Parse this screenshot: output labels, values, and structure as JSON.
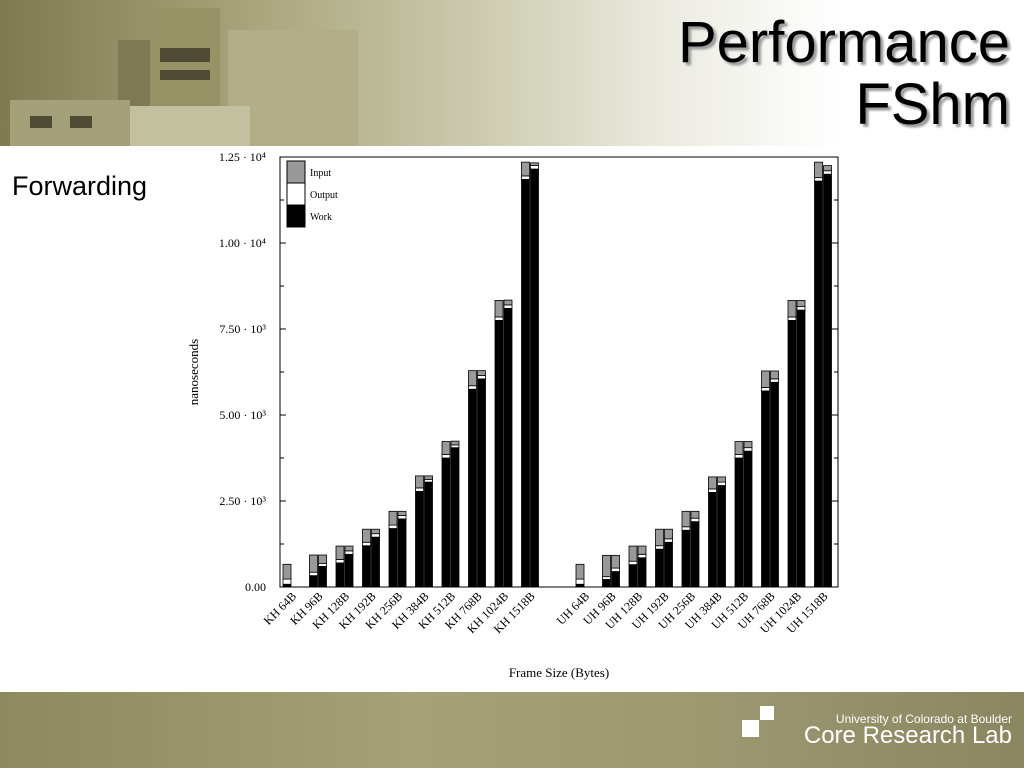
{
  "slide": {
    "title_line1": "Performance",
    "title_line2": "FShm",
    "subheading": "Forwarding"
  },
  "footer": {
    "university": "University of Colorado at Boulder",
    "lab": "Core Research Lab"
  },
  "colors": {
    "input": "#999999",
    "output": "#ffffff",
    "work": "#000000"
  },
  "chart_data": {
    "type": "bar",
    "stacked": true,
    "xlabel": "Frame Size (Bytes)",
    "ylabel": "nanoseconds",
    "ylim": [
      0,
      12500
    ],
    "yticks": [
      {
        "value": 0,
        "label": "0.00"
      },
      {
        "value": 2500,
        "label": "2.50 · 10³"
      },
      {
        "value": 5000,
        "label": "5.00 · 10³"
      },
      {
        "value": 7500,
        "label": "7.50 · 10³"
      },
      {
        "value": 10000,
        "label": "1.00 · 10⁴"
      },
      {
        "value": 12500,
        "label": "1.25 · 10⁴"
      }
    ],
    "legend_position": "top-left",
    "legend": [
      "Input",
      "Output",
      "Work"
    ],
    "groups": [
      {
        "categories": [
          "KH 64B",
          "KH 96B",
          "KH 128B",
          "KH 192B",
          "KH 256B",
          "KH 384B",
          "KH 512B",
          "KH 768B",
          "KH 1024B",
          "KH 1518B"
        ],
        "pairs": [
          [
            {
              "work": 80,
              "output": 150,
              "input": 430
            },
            {
              "work": 0,
              "output": 0,
              "input": 0
            }
          ],
          [
            {
              "work": 330,
              "output": 100,
              "input": 500
            },
            {
              "work": 600,
              "output": 80,
              "input": 250
            }
          ],
          [
            {
              "work": 700,
              "output": 100,
              "input": 390
            },
            {
              "work": 950,
              "output": 100,
              "input": 140
            }
          ],
          [
            {
              "work": 1200,
              "output": 100,
              "input": 380
            },
            {
              "work": 1450,
              "output": 100,
              "input": 130
            }
          ],
          [
            {
              "work": 1700,
              "output": 100,
              "input": 400
            },
            {
              "work": 1980,
              "output": 100,
              "input": 120
            }
          ],
          [
            {
              "work": 2780,
              "output": 100,
              "input": 350
            },
            {
              "work": 3050,
              "output": 80,
              "input": 100
            }
          ],
          [
            {
              "work": 3750,
              "output": 100,
              "input": 380
            },
            {
              "work": 4050,
              "output": 80,
              "input": 110
            }
          ],
          [
            {
              "work": 5750,
              "output": 100,
              "input": 440
            },
            {
              "work": 6050,
              "output": 100,
              "input": 140
            }
          ],
          [
            {
              "work": 7750,
              "output": 100,
              "input": 480
            },
            {
              "work": 8100,
              "output": 100,
              "input": 140
            }
          ],
          [
            {
              "work": 11850,
              "output": 100,
              "input": 400
            },
            {
              "work": 12150,
              "output": 100,
              "input": 80
            }
          ]
        ]
      },
      {
        "categories": [
          "UH 64B",
          "UH 96B",
          "UH 128B",
          "UH 192B",
          "UH 256B",
          "UH 384B",
          "UH 512B",
          "UH 768B",
          "UH 1024B",
          "UH 1518B"
        ],
        "pairs": [
          [
            {
              "work": 80,
              "output": 150,
              "input": 430
            },
            {
              "work": 0,
              "output": 0,
              "input": 0
            }
          ],
          [
            {
              "work": 220,
              "output": 80,
              "input": 620
            },
            {
              "work": 450,
              "output": 100,
              "input": 370
            }
          ],
          [
            {
              "work": 650,
              "output": 100,
              "input": 440
            },
            {
              "work": 850,
              "output": 100,
              "input": 240
            }
          ],
          [
            {
              "work": 1100,
              "output": 100,
              "input": 480
            },
            {
              "work": 1300,
              "output": 100,
              "input": 280
            }
          ],
          [
            {
              "work": 1650,
              "output": 100,
              "input": 450
            },
            {
              "work": 1900,
              "output": 100,
              "input": 200
            }
          ],
          [
            {
              "work": 2750,
              "output": 100,
              "input": 350
            },
            {
              "work": 2950,
              "output": 100,
              "input": 150
            }
          ],
          [
            {
              "work": 3750,
              "output": 100,
              "input": 380
            },
            {
              "work": 3950,
              "output": 100,
              "input": 180
            }
          ],
          [
            {
              "work": 5700,
              "output": 100,
              "input": 480
            },
            {
              "work": 5950,
              "output": 100,
              "input": 230
            }
          ],
          [
            {
              "work": 7750,
              "output": 100,
              "input": 480
            },
            {
              "work": 8050,
              "output": 100,
              "input": 180
            }
          ],
          [
            {
              "work": 11800,
              "output": 100,
              "input": 450
            },
            {
              "work": 12000,
              "output": 100,
              "input": 150
            }
          ]
        ]
      }
    ]
  }
}
